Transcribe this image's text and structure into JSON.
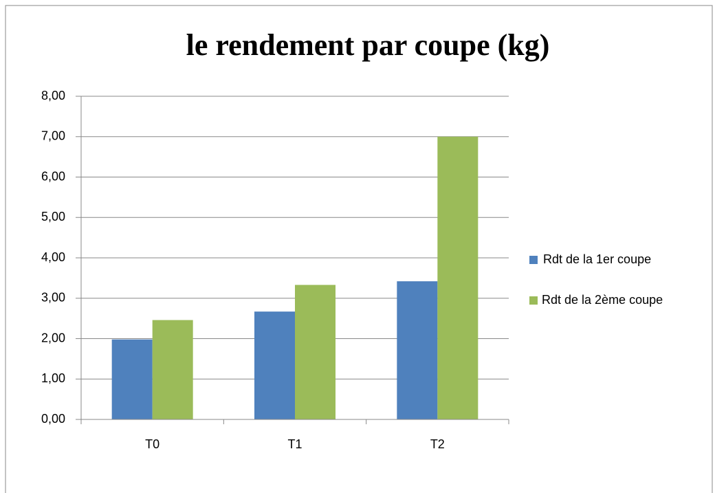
{
  "chart_data": {
    "type": "bar",
    "title": "le rendement par coupe (kg)",
    "categories": [
      "T0",
      "T1",
      "T2"
    ],
    "series": [
      {
        "name": "Rdt de la 1er coupe",
        "color": "#4f81bd",
        "values": [
          1.98,
          2.67,
          3.42
        ]
      },
      {
        "name": "Rdt de la 2ème coupe",
        "color": "#9bbb59",
        "values": [
          2.46,
          3.33,
          7.0
        ]
      }
    ],
    "ylim": [
      0,
      8
    ],
    "yticks": [
      {
        "value": 0,
        "label": "0,00"
      },
      {
        "value": 1,
        "label": "1,00"
      },
      {
        "value": 2,
        "label": "2,00"
      },
      {
        "value": 3,
        "label": "3,00"
      },
      {
        "value": 4,
        "label": "4,00"
      },
      {
        "value": 5,
        "label": "5,00"
      },
      {
        "value": 6,
        "label": "6,00"
      },
      {
        "value": 7,
        "label": "7,00"
      },
      {
        "value": 8,
        "label": "8,00"
      }
    ],
    "grid": true,
    "legend": "right"
  }
}
